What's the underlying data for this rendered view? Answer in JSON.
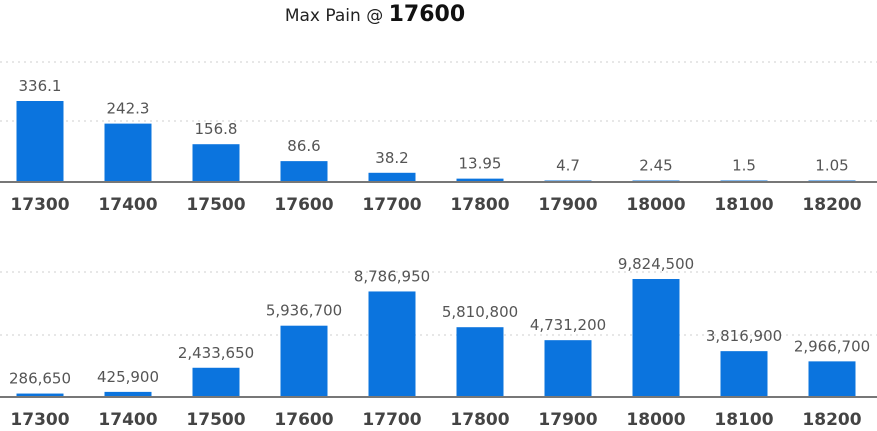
{
  "header": {
    "title_prefix": "Max Pain @ ",
    "title_value": "17600"
  },
  "colors": {
    "bar": "#0b74de"
  },
  "chart_data": [
    {
      "type": "bar",
      "categories": [
        "17300",
        "17400",
        "17500",
        "17600",
        "17700",
        "17800",
        "17900",
        "18000",
        "18100",
        "18200"
      ],
      "values": [
        336.1,
        242.3,
        156.8,
        86.6,
        38.2,
        13.95,
        4.7,
        2.45,
        1.5,
        1.05
      ],
      "labels": [
        "336.1",
        "242.3",
        "156.8",
        "86.6",
        "38.2",
        "13.95",
        "4.7",
        "2.45",
        "1.5",
        "1.05"
      ],
      "ylim": [
        0,
        360
      ],
      "grid": true
    },
    {
      "type": "bar",
      "categories": [
        "17300",
        "17400",
        "17500",
        "17600",
        "17700",
        "17800",
        "17900",
        "18000",
        "18100",
        "18200"
      ],
      "values": [
        286650,
        425900,
        2433650,
        5936700,
        8786950,
        5810800,
        4731200,
        9824500,
        3816900,
        2966700
      ],
      "labels": [
        "286,650",
        "425,900",
        "2,433,650",
        "5,936,700",
        "8,786,950",
        "5,810,800",
        "4,731,200",
        "9,824,500",
        "3,816,900",
        "2,966,700"
      ],
      "ylim": [
        0,
        10500000
      ],
      "grid": true
    }
  ]
}
